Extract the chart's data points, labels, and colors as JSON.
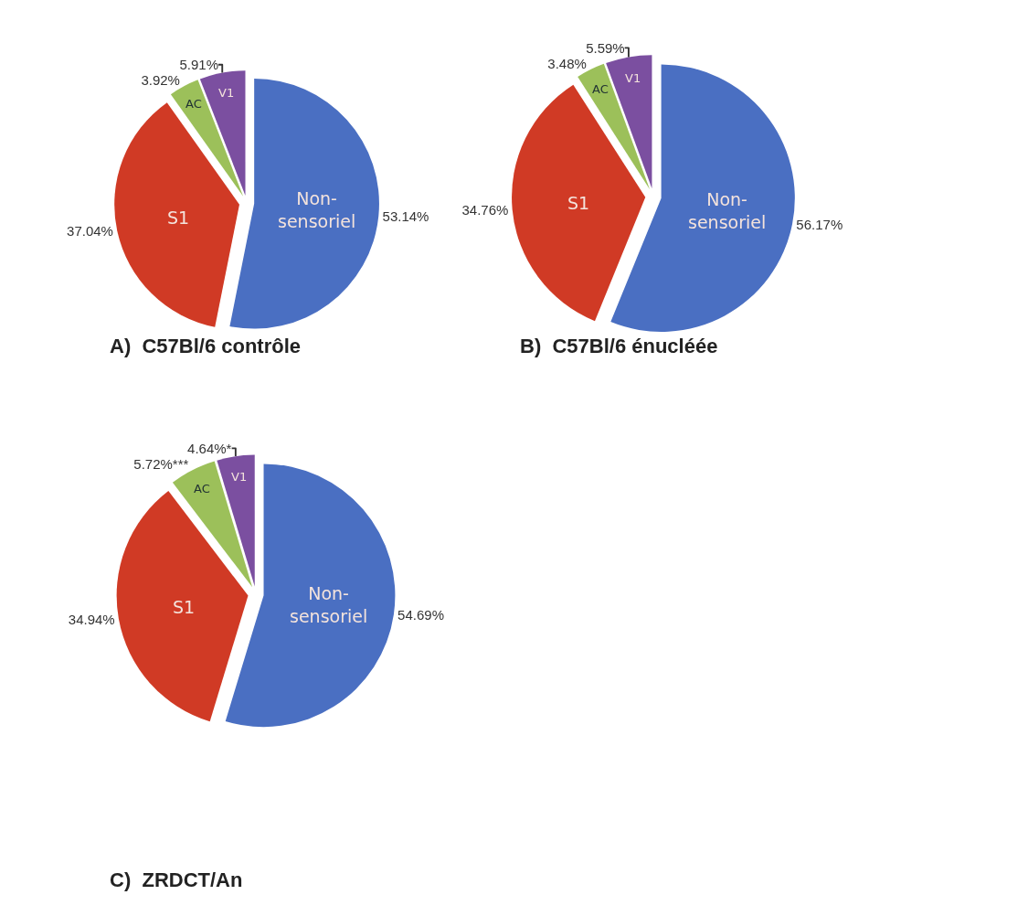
{
  "chart_data": [
    {
      "type": "pie",
      "title": "A)  C57Bl/6 contrôle",
      "categories": [
        "Non-sensoriel",
        "S1",
        "AC",
        "V1"
      ],
      "values": [
        53.14,
        37.04,
        3.92,
        5.91
      ],
      "value_labels": [
        "53.14%",
        "37.04%",
        "3.92%",
        "5.91%"
      ],
      "colors": [
        "#4a6fc2",
        "#d03a25",
        "#9cc05a",
        "#7b4fa0"
      ],
      "legend": false
    },
    {
      "type": "pie",
      "title": "B)  C57Bl/6 énucléée",
      "categories": [
        "Non-sensoriel",
        "S1",
        "AC",
        "V1"
      ],
      "values": [
        56.17,
        34.76,
        3.48,
        5.59
      ],
      "value_labels": [
        "56.17%",
        "34.76%",
        "3.48%",
        "5.59%"
      ],
      "colors": [
        "#4a6fc2",
        "#d03a25",
        "#9cc05a",
        "#7b4fa0"
      ],
      "legend": false
    },
    {
      "type": "pie",
      "title": "C)  ZRDCT/An",
      "categories": [
        "Non-sensoriel",
        "S1",
        "AC",
        "V1"
      ],
      "values": [
        54.69,
        34.94,
        5.72,
        4.64
      ],
      "value_labels": [
        "54.69%",
        "34.94%",
        "5.72%***",
        "4.64%*"
      ],
      "colors": [
        "#4a6fc2",
        "#d03a25",
        "#9cc05a",
        "#7b4fa0"
      ],
      "legend": false
    }
  ]
}
